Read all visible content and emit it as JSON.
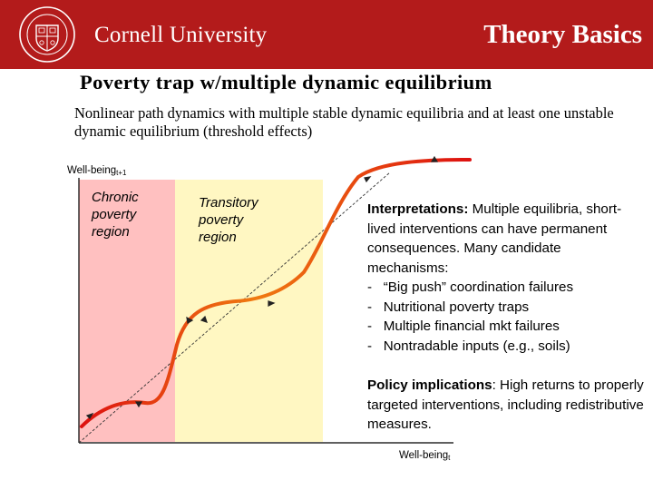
{
  "header": {
    "university_name": "Cornell University",
    "slide_section": "Theory Basics",
    "seal_icon": "cornell-seal-icon"
  },
  "slide": {
    "title": "Poverty trap w/multiple dynamic equilibrium",
    "subtitle": "Nonlinear path dynamics with multiple stable dynamic equilibria and at least one unstable dynamic equilibrium (threshold effects)"
  },
  "diagram": {
    "y_axis": {
      "label": "Well-being",
      "subscript": "t+1"
    },
    "x_axis": {
      "label": "Well-being",
      "subscript": "t"
    },
    "regions": [
      {
        "label": "Chronic poverty region",
        "color": "#ffc0c0"
      },
      {
        "label": "Transitory poverty region",
        "color": "#fff7c2"
      }
    ],
    "curve_gradient": [
      "#dd1010",
      "#f07a10",
      "#dd1010"
    ]
  },
  "interpretations": {
    "heading": "Interpretations:",
    "text": " Multiple equilibria, short-lived interventions can have permanent consequences. Many candidate mechanisms:",
    "items": [
      "“Big push” coordination failures",
      "Nutritional poverty traps",
      "Multiple financial mkt failures",
      "Nontradable inputs (e.g., soils)"
    ],
    "bullet": "-"
  },
  "policy": {
    "heading": "Policy implications",
    "text": ": High returns to properly targeted interventions, including redistributive measures."
  }
}
